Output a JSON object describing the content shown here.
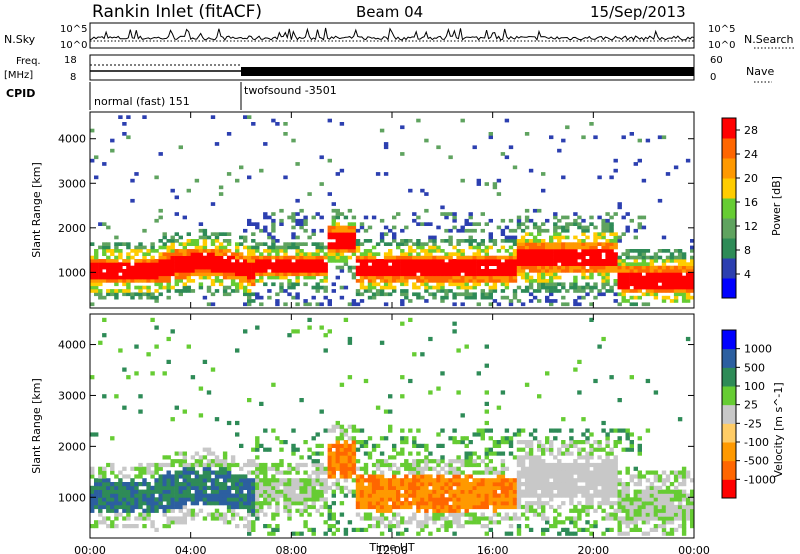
{
  "header": {
    "station": "Rankin Inlet (fitACF)",
    "beam": "Beam 04",
    "date": "15/Sep/2013"
  },
  "noise_panel": {
    "left_label": "N.Sky",
    "right_label": "N.Search",
    "left_ticks": [
      "10^5",
      "10^0"
    ],
    "right_ticks": [
      "10^5",
      "10^0"
    ]
  },
  "freq_panel": {
    "left_label_top": "Freq.",
    "left_label_unit": "[MHz]",
    "left_ticks": [
      "18",
      "8"
    ],
    "right_label": "Nave",
    "right_ticks": [
      "60",
      "0"
    ]
  },
  "cpid_panel": {
    "label": "CPID",
    "modes": [
      {
        "name": "normal (fast) 151",
        "start_h": 0,
        "end_h": 6
      },
      {
        "name": "twofsound -3501",
        "start_h": 6,
        "end_h": 24
      }
    ]
  },
  "colors": {
    "power_scale": [
      "#0000ff",
      "#2c3fb0",
      "#2e8b57",
      "#5fa35f",
      "#66cc33",
      "#ffcc00",
      "#ff9900",
      "#ff6600",
      "#ff0000"
    ],
    "velocity_scale": [
      "#ff0000",
      "#ff6600",
      "#ff9900",
      "#ffcc66",
      "#c8c8c8",
      "#66cc33",
      "#2e8b57",
      "#2c5fa0",
      "#0000ff"
    ]
  },
  "chart_data": [
    {
      "type": "heatmap",
      "name": "Power",
      "xlabel": "",
      "ylabel": "Slant Range [km]",
      "xlim_hours": [
        0,
        24
      ],
      "ylim": [
        200,
        4600
      ],
      "yticks": [
        "1000",
        "2000",
        "3000",
        "4000"
      ],
      "colorbar": {
        "label": "Power [dB]",
        "ticks": [
          "4",
          "8",
          "12",
          "16",
          "20",
          "24",
          "28"
        ],
        "range": [
          0,
          30
        ]
      }
    },
    {
      "type": "heatmap",
      "name": "Velocity",
      "xlabel": "Time UT",
      "ylabel": "Slant Range [km]",
      "xlim_hours": [
        0,
        24
      ],
      "ylim": [
        200,
        4600
      ],
      "xticks": [
        "00:00",
        "04:00",
        "08:00",
        "12:00",
        "16:00",
        "20:00",
        "00:00"
      ],
      "yticks": [
        "1000",
        "2000",
        "3000",
        "4000"
      ],
      "colorbar": {
        "label": "Velocity [m s^-1]",
        "ticks": [
          "1000",
          "500",
          "100",
          "25",
          "-25",
          "-100",
          "-500",
          "-1000"
        ]
      }
    }
  ]
}
